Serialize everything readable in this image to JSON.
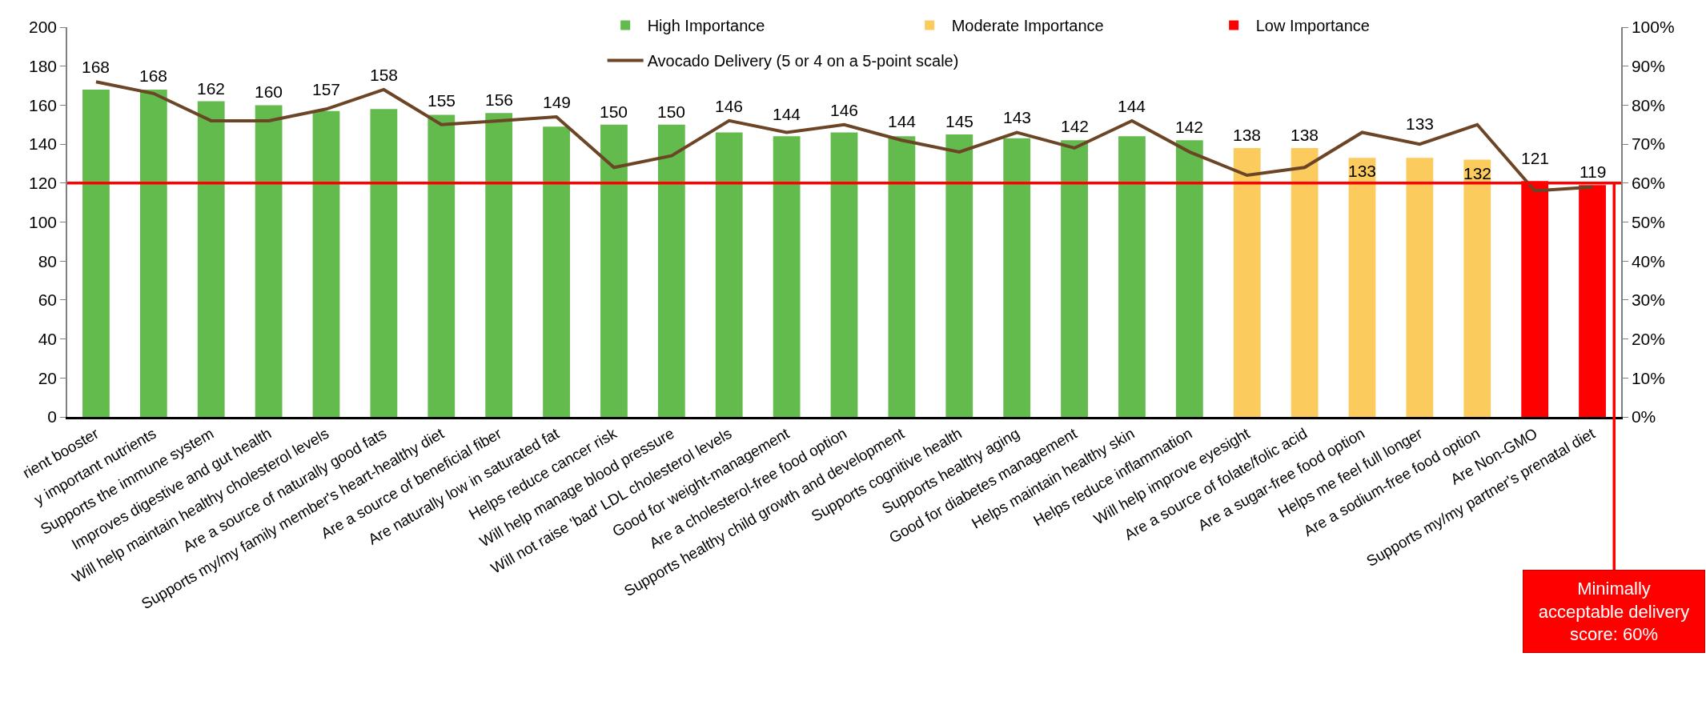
{
  "chart_data": {
    "type": "bar",
    "categories": [
      "rient booster",
      "y important nutrients",
      "Supports the immune system",
      "Improves digestive and gut health",
      "Will help maintain healthy cholesterol levels",
      "Are a source of naturally good fats",
      "Supports my/my family member's heart-healthy diet",
      "Are a source of beneficial fiber",
      "Are naturally low in saturated fat",
      "Helps reduce cancer risk",
      "Will help manage blood pressure",
      "Will not raise 'bad' LDL cholesterol levels",
      "Good for weight-management",
      "Are a cholesterol-free food option",
      "Supports healthy child growth and development",
      "Supports cognitive health",
      "Supports healthy aging",
      "Good for diabetes management",
      "Helps maintain healthy skin",
      "Helps reduce inflammation",
      "Will help improve eyesight",
      "Are a source of folate/folic acid",
      "Are a sugar-free food option",
      "Helps me feel full longer",
      "Are a sodium-free food option",
      "Are Non-GMO",
      "Supports my/my partner's prenatal diet"
    ],
    "series": [
      {
        "name": "High Importance",
        "color": "#63bb4e",
        "data_labels": true,
        "values": [
          168,
          168,
          162,
          160,
          157,
          158,
          155,
          156,
          149,
          150,
          150,
          146,
          144,
          146,
          144,
          145,
          143,
          142,
          144,
          142,
          null,
          null,
          null,
          null,
          null,
          null,
          null
        ]
      },
      {
        "name": "Moderate Importance",
        "color": "#fbcb5e",
        "data_labels": true,
        "values": [
          null,
          null,
          null,
          null,
          null,
          null,
          null,
          null,
          null,
          null,
          null,
          null,
          null,
          null,
          null,
          null,
          null,
          null,
          null,
          null,
          138,
          138,
          133,
          133,
          132,
          null,
          null
        ]
      },
      {
        "name": "Low Importance",
        "color": "#ff0000",
        "data_labels": true,
        "values": [
          null,
          null,
          null,
          null,
          null,
          null,
          null,
          null,
          null,
          null,
          null,
          null,
          null,
          null,
          null,
          null,
          null,
          null,
          null,
          null,
          null,
          null,
          null,
          null,
          null,
          121,
          119
        ]
      },
      {
        "name": "Avocado Delivery (5 or 4 on a 5-point scale)",
        "type": "line",
        "axis": "y2",
        "color": "#6b4526",
        "marker": "none",
        "line_style": "solid",
        "values": [
          86,
          83,
          76,
          76,
          79,
          84,
          75,
          76,
          77,
          64,
          67,
          76,
          73,
          75,
          71,
          68,
          73,
          69,
          76,
          68,
          62,
          64,
          73,
          70,
          75,
          58,
          59
        ]
      }
    ],
    "ylim": [
      0,
      200
    ],
    "yticks": [
      0,
      20,
      40,
      60,
      80,
      100,
      120,
      140,
      160,
      180,
      200
    ],
    "y2lim": [
      0,
      100
    ],
    "y2ticks": [
      {
        "value": 0,
        "label": "0%"
      },
      {
        "value": 10,
        "label": "10%"
      },
      {
        "value": 20,
        "label": "20%"
      },
      {
        "value": 30,
        "label": "30%"
      },
      {
        "value": 40,
        "label": "40%"
      },
      {
        "value": 50,
        "label": "50%"
      },
      {
        "value": 60,
        "label": "60%"
      },
      {
        "value": 70,
        "label": "70%"
      },
      {
        "value": 80,
        "label": "80%"
      },
      {
        "value": 90,
        "label": "90%"
      },
      {
        "value": 100,
        "label": "100%"
      }
    ],
    "ref_lines": [
      {
        "axis": "y2",
        "value": 60,
        "label": "Minimally acceptable delivery score: 60%",
        "color": "#ff0000",
        "line_style": "solid"
      }
    ],
    "grid": false,
    "legend": "top"
  }
}
